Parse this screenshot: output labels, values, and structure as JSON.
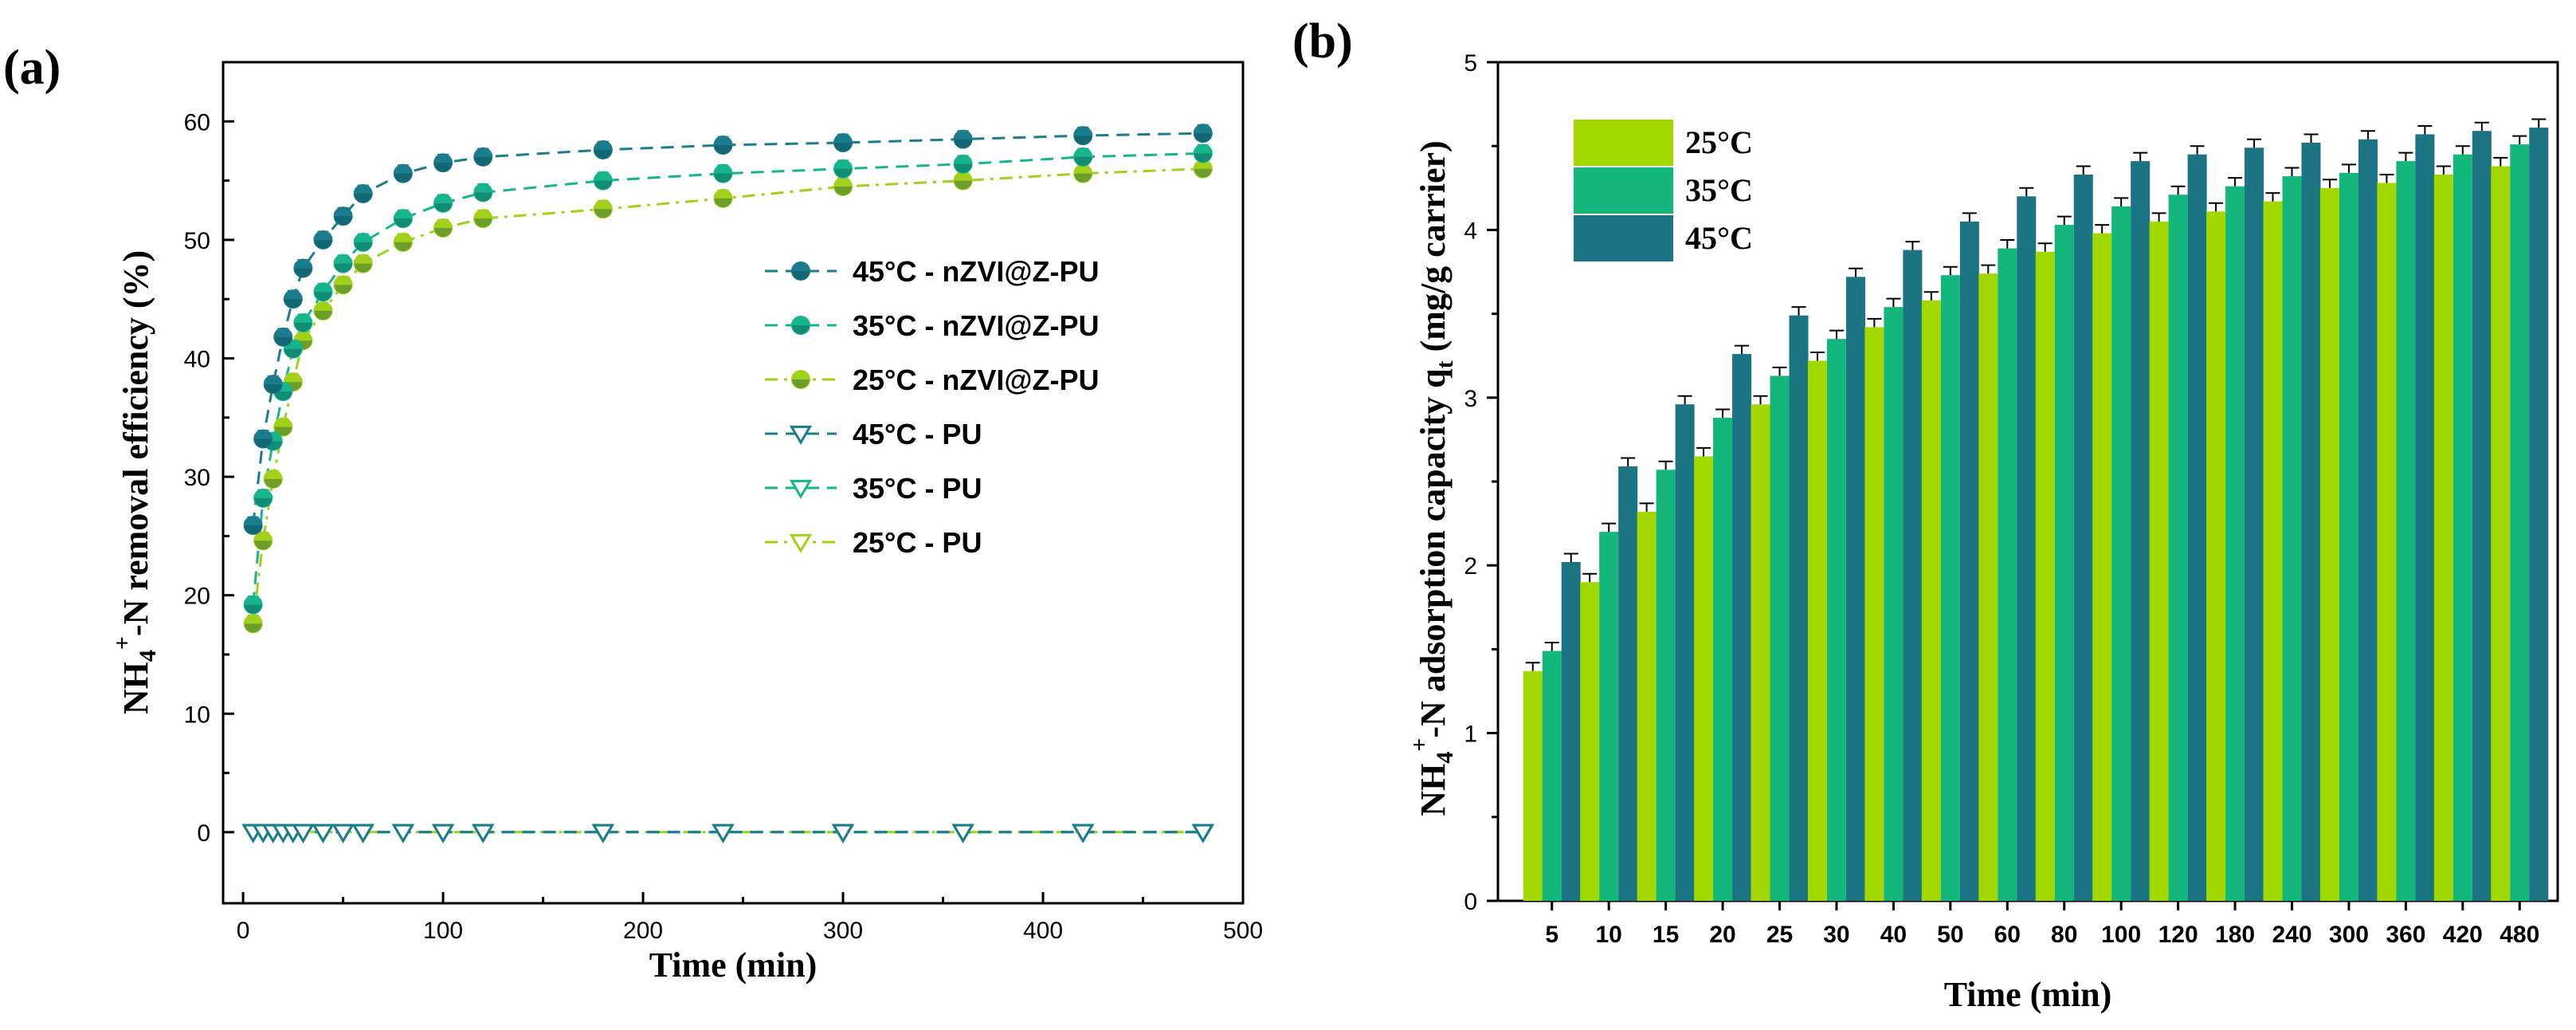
{
  "chart_data": [
    {
      "panel": "(a)",
      "type": "line",
      "xlabel": "Time (min)",
      "ylabel": "NH4+-N removal efficiency (%)",
      "ylabel_parts": [
        "NH",
        "4",
        "+",
        "-N removal efficiency (%)"
      ],
      "xlim": [
        -10,
        500
      ],
      "ylim": [
        -6,
        65
      ],
      "xticks": [
        0,
        100,
        200,
        300,
        400,
        500
      ],
      "yticks": [
        0,
        10,
        20,
        30,
        40,
        50,
        60
      ],
      "x": [
        5,
        10,
        15,
        20,
        25,
        30,
        40,
        50,
        60,
        80,
        100,
        120,
        180,
        240,
        300,
        360,
        420,
        480
      ],
      "series": [
        {
          "name": "45°C - nZVI@Z-PU",
          "color": "#1a7c8c",
          "marker": "circle",
          "dash": "dash",
          "values": [
            25.9,
            33.2,
            37.8,
            41.8,
            45.0,
            47.6,
            50.0,
            52.0,
            53.9,
            55.6,
            56.5,
            57.0,
            57.6,
            58.0,
            58.2,
            58.5,
            58.8,
            59.0
          ]
        },
        {
          "name": "35°C - nZVI@Z-PU",
          "color": "#16b58e",
          "marker": "circle",
          "dash": "dash",
          "values": [
            19.2,
            28.2,
            33.0,
            37.2,
            40.8,
            43.0,
            45.6,
            48.0,
            49.8,
            51.8,
            53.1,
            54.0,
            55.0,
            55.6,
            56.0,
            56.4,
            57.0,
            57.3
          ]
        },
        {
          "name": "25°C - nZVI@Z-PU",
          "color": "#a2d11c",
          "marker": "circle",
          "dash": "dashdot",
          "values": [
            17.6,
            24.6,
            29.8,
            34.2,
            38.0,
            41.5,
            44.0,
            46.2,
            48.0,
            49.8,
            51.0,
            51.8,
            52.6,
            53.5,
            54.5,
            55.0,
            55.6,
            56.0
          ]
        },
        {
          "name": "45°C - PU",
          "color": "#1a7c8c",
          "marker": "triangle-down",
          "dash": "dash",
          "values": [
            0,
            0,
            0,
            0,
            0,
            0,
            0,
            0,
            0,
            0,
            0,
            0,
            0,
            0,
            0,
            0,
            0,
            0
          ]
        },
        {
          "name": "35°C - PU",
          "color": "#16b58e",
          "marker": "triangle-down",
          "dash": "dash",
          "values": [
            0,
            0,
            0,
            0,
            0,
            0,
            0,
            0,
            0,
            0,
            0,
            0,
            0,
            0,
            0,
            0,
            0,
            0
          ]
        },
        {
          "name": "25°C - PU",
          "color": "#a2d11c",
          "marker": "triangle-down",
          "dash": "dashdot",
          "values": [
            0,
            0,
            0,
            0,
            0,
            0,
            0,
            0,
            0,
            0,
            0,
            0,
            0,
            0,
            0,
            0,
            0,
            0
          ]
        }
      ],
      "legend_position": "center-right"
    },
    {
      "panel": "(b)",
      "type": "bar",
      "xlabel": "Time (min)",
      "ylabel": "NH4+-N adsorption capacity qt (mg/g carrier)",
      "ylabel_parts": [
        "NH",
        "4",
        "+",
        "-N adsorption capacity q",
        "t",
        " (mg/g carrier)"
      ],
      "ylim": [
        0,
        5
      ],
      "yticks": [
        0,
        1,
        2,
        3,
        4,
        5
      ],
      "categories": [
        "5",
        "10",
        "15",
        "20",
        "25",
        "30",
        "40",
        "50",
        "60",
        "80",
        "100",
        "120",
        "180",
        "240",
        "300",
        "360",
        "420",
        "480"
      ],
      "series": [
        {
          "name": "25°C",
          "color": "#a2d800",
          "values": [
            1.37,
            1.9,
            2.32,
            2.65,
            2.96,
            3.22,
            3.42,
            3.58,
            3.74,
            3.87,
            3.98,
            4.05,
            4.11,
            4.17,
            4.25,
            4.28,
            4.33,
            4.38
          ]
        },
        {
          "name": "35°C",
          "color": "#13b77b",
          "values": [
            1.49,
            2.2,
            2.57,
            2.88,
            3.13,
            3.35,
            3.54,
            3.73,
            3.89,
            4.03,
            4.14,
            4.21,
            4.26,
            4.32,
            4.34,
            4.41,
            4.45,
            4.51
          ]
        },
        {
          "name": "45°C",
          "color": "#1a7482",
          "values": [
            2.02,
            2.59,
            2.96,
            3.26,
            3.49,
            3.72,
            3.88,
            4.05,
            4.2,
            4.33,
            4.41,
            4.45,
            4.49,
            4.52,
            4.54,
            4.57,
            4.59,
            4.61
          ]
        }
      ],
      "legend_position": "top-left"
    }
  ]
}
